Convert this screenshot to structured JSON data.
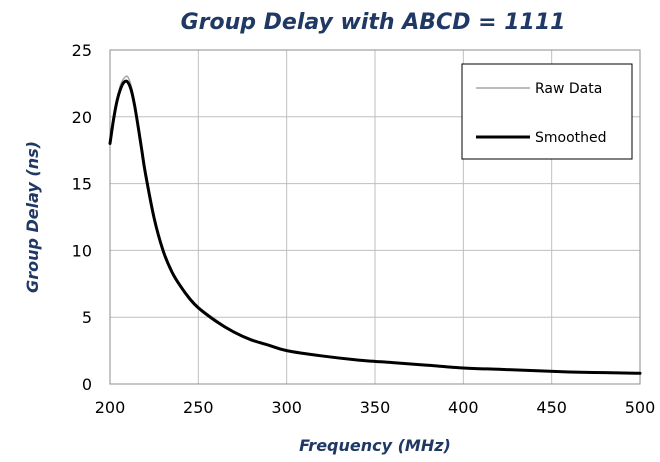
{
  "chart_data": {
    "type": "line",
    "title": "Group Delay with ABCD = 1111",
    "xlabel": "Frequency (MHz)",
    "ylabel": "Group Delay (ns)",
    "xlim": [
      200,
      500
    ],
    "ylim": [
      0,
      25
    ],
    "xticks": [
      200,
      250,
      300,
      350,
      400,
      450,
      500
    ],
    "yticks": [
      0,
      5,
      10,
      15,
      20,
      25
    ],
    "grid": true,
    "legend_position": "top-right",
    "series": [
      {
        "name": "Raw Data",
        "color": "#a6a6a6",
        "x": [
          200,
          202,
          204,
          206,
          208,
          210,
          212,
          214,
          216,
          218,
          220,
          225,
          230,
          235,
          240,
          245,
          250,
          260,
          270,
          280,
          290,
          300,
          320,
          340,
          360,
          380,
          400,
          420,
          440,
          460,
          480,
          500
        ],
        "y": [
          18.0,
          19.9,
          21.3,
          22.4,
          22.9,
          23.0,
          22.3,
          21.0,
          19.4,
          17.7,
          16.0,
          12.5,
          10.0,
          8.5,
          7.4,
          6.5,
          5.8,
          4.8,
          3.9,
          3.3,
          2.9,
          2.5,
          2.1,
          1.8,
          1.6,
          1.4,
          1.2,
          1.1,
          1.0,
          0.9,
          0.85,
          0.8
        ]
      },
      {
        "name": "Smoothed",
        "color": "#000000",
        "x": [
          200,
          202,
          204,
          206,
          208,
          210,
          212,
          214,
          216,
          218,
          220,
          225,
          230,
          235,
          240,
          245,
          250,
          260,
          270,
          280,
          290,
          300,
          320,
          340,
          360,
          380,
          400,
          420,
          440,
          460,
          480,
          500
        ],
        "y": [
          18.0,
          19.8,
          21.2,
          22.1,
          22.6,
          22.6,
          22.0,
          20.8,
          19.2,
          17.5,
          15.8,
          12.4,
          10.0,
          8.4,
          7.3,
          6.4,
          5.7,
          4.7,
          3.9,
          3.3,
          2.9,
          2.5,
          2.1,
          1.8,
          1.6,
          1.4,
          1.2,
          1.1,
          1.0,
          0.9,
          0.85,
          0.8
        ]
      }
    ]
  }
}
